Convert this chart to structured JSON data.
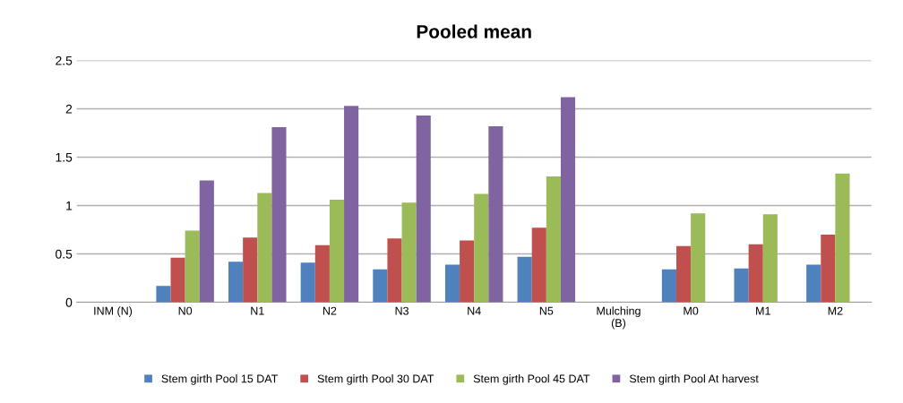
{
  "chart_data": {
    "type": "bar",
    "title": "Pooled mean",
    "categories": [
      "INM (N)",
      "N0",
      "N1",
      "N2",
      "N3",
      "N4",
      "N5",
      "Mulching\n(B)",
      "M0",
      "M1",
      "M2"
    ],
    "series": [
      {
        "name": "Stem girth Pool 15 DAT",
        "color": "#4f81bd",
        "values": [
          null,
          0.17,
          0.42,
          0.41,
          0.34,
          0.39,
          0.47,
          null,
          0.34,
          0.35,
          0.39
        ]
      },
      {
        "name": "Stem girth Pool 30 DAT",
        "color": "#c0504d",
        "values": [
          null,
          0.46,
          0.67,
          0.59,
          0.66,
          0.64,
          0.77,
          null,
          0.58,
          0.6,
          0.7
        ]
      },
      {
        "name": "Stem girth Pool 45 DAT",
        "color": "#9bbb59",
        "values": [
          null,
          0.74,
          1.13,
          1.06,
          1.03,
          1.12,
          1.3,
          null,
          0.92,
          0.91,
          1.33
        ]
      },
      {
        "name": "Stem girth Pool At harvest",
        "color": "#8064a2",
        "values": [
          null,
          1.26,
          1.81,
          2.03,
          1.93,
          1.82,
          2.12,
          null,
          null,
          null,
          null
        ]
      }
    ],
    "ylim": [
      0,
      2.5
    ],
    "yticks": [
      0,
      0.5,
      1,
      1.5,
      2,
      2.5
    ],
    "grid": "y",
    "legend": "bottom"
  }
}
